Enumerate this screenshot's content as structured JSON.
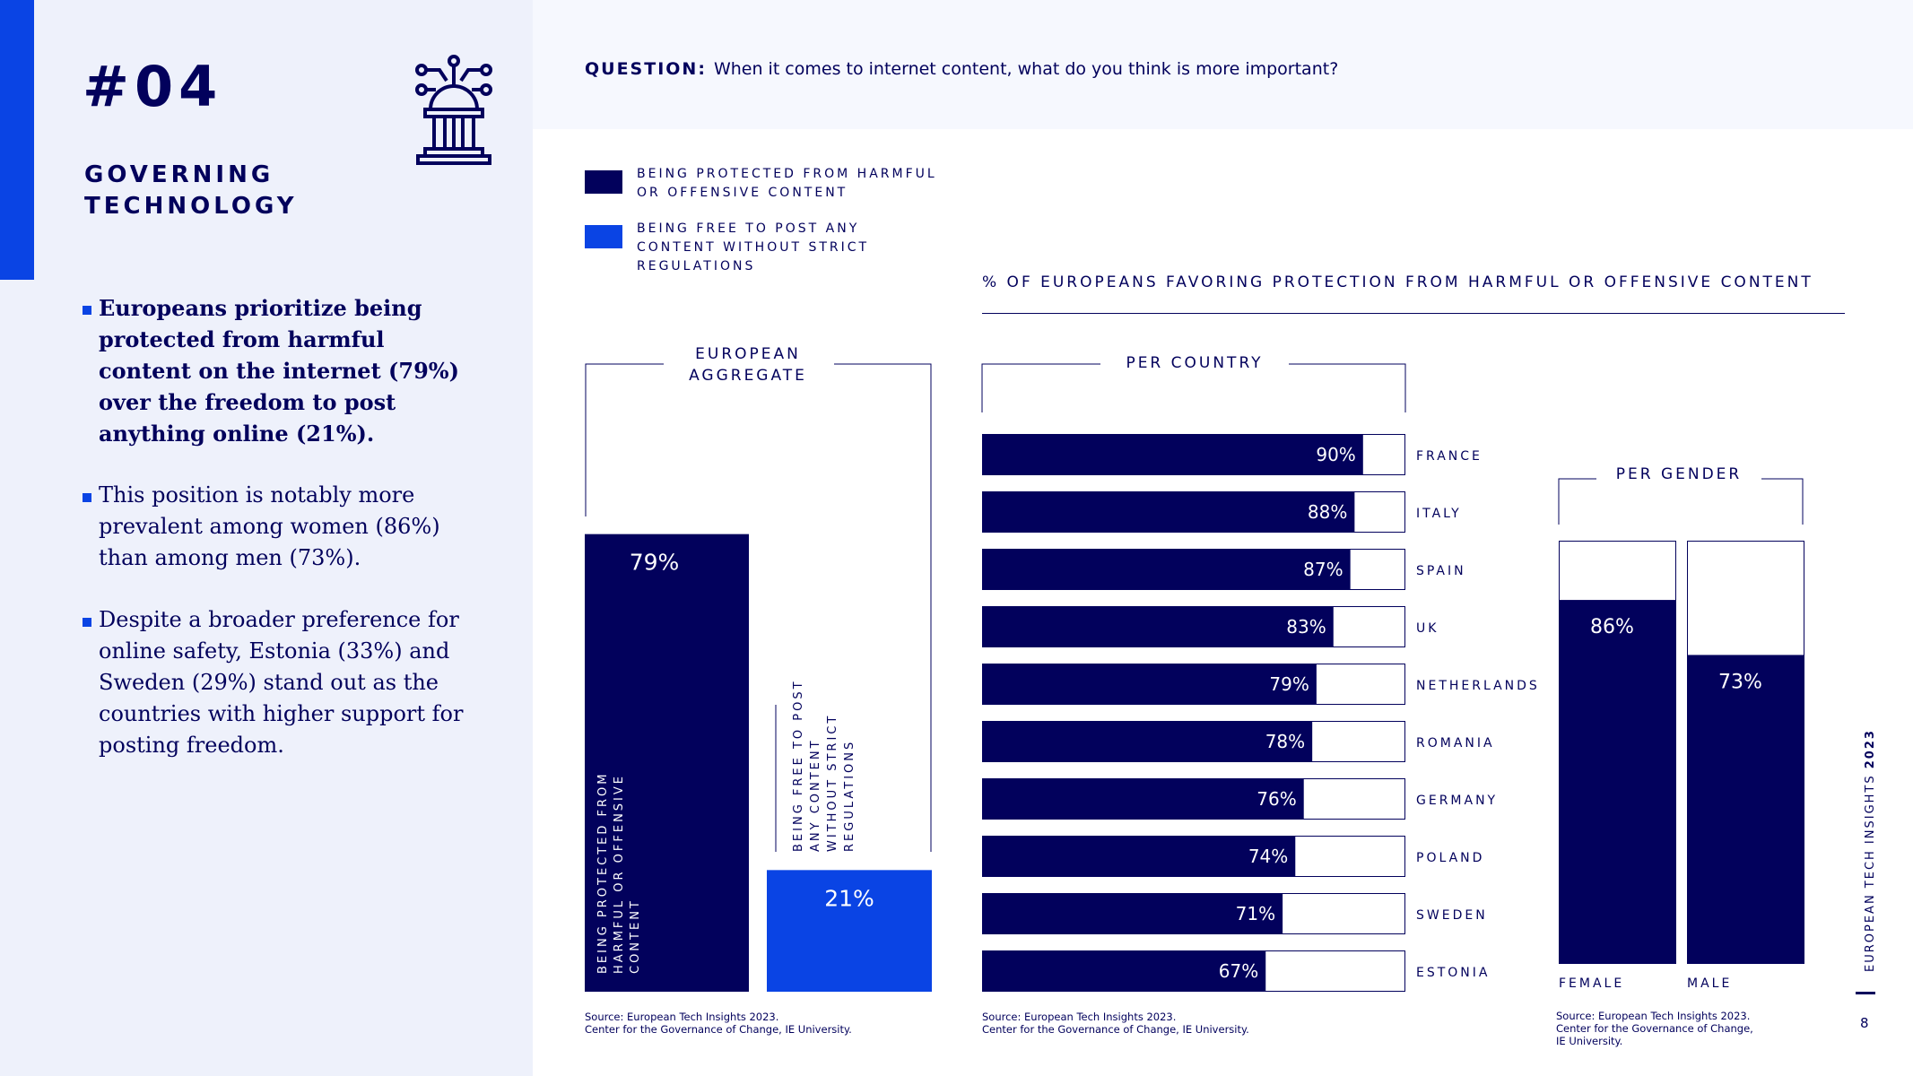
{
  "sidebar": {
    "section_number": "#04",
    "section_title": "GOVERNING TECHNOLOGY",
    "icon": "government-tech-icon",
    "bullets": [
      "Europeans prioritize being protected from harmful content on the internet (79%) over the freedom to post anything online (21%).",
      "This position is notably more prevalent among women (86%) than among men (73%).",
      "Despite a broader preference for online safety, Estonia (33%) and Sweden (29%) stand out as the countries with higher support for posting freedom."
    ]
  },
  "question": {
    "label": "QUESTION:",
    "text": "When it comes to internet content, what do you think is more important?"
  },
  "legend": [
    {
      "label": "BEING PROTECTED FROM HARMFUL OR OFFENSIVE CONTENT",
      "color": "#02015c"
    },
    {
      "label": "BEING FREE TO POST ANY CONTENT WITHOUT STRICT REGULATIONS",
      "color": "#0a44e4"
    }
  ],
  "header_label": "% OF EUROPEANS FAVORING PROTECTION FROM HARMFUL OR OFFENSIVE CONTENT",
  "colors": {
    "navy": "#02015c",
    "blue": "#0a44e4",
    "panel": "#eef1fb"
  },
  "chart_data": [
    {
      "type": "bar",
      "title": "EUROPEAN AGGREGATE",
      "categories": [
        "BEING PROTECTED FROM HARMFUL OR OFFENSIVE CONTENT",
        "BEING FREE TO POST ANY CONTENT WITHOUT STRICT REGULATIONS"
      ],
      "values": [
        79,
        21
      ],
      "value_labels": [
        "79%",
        "21%"
      ],
      "ylim": [
        0,
        100
      ],
      "source": [
        "Source: European Tech Insights 2023.",
        "Center for the Governance of Change, IE University."
      ]
    },
    {
      "type": "bar",
      "orientation": "horizontal",
      "title": "PER COUNTRY",
      "categories": [
        "FRANCE",
        "ITALY",
        "SPAIN",
        "UK",
        "NETHERLANDS",
        "ROMANIA",
        "GERMANY",
        "POLAND",
        "SWEDEN",
        "ESTONIA"
      ],
      "values": [
        90,
        88,
        87,
        83,
        79,
        78,
        76,
        74,
        71,
        67
      ],
      "value_labels": [
        "90%",
        "88%",
        "87%",
        "83%",
        "79%",
        "78%",
        "76%",
        "74%",
        "71%",
        "67%"
      ],
      "xlim": [
        0,
        100
      ],
      "source": [
        "Source: European Tech Insights 2023.",
        "Center for the Governance of Change, IE University."
      ]
    },
    {
      "type": "bar",
      "title": "PER GENDER",
      "categories": [
        "FEMALE",
        "MALE"
      ],
      "values": [
        86,
        73
      ],
      "value_labels": [
        "86%",
        "73%"
      ],
      "ylim": [
        0,
        100
      ],
      "source": [
        "Source: European Tech Insights 2023.",
        "Center for the Governance of Change,",
        "IE University."
      ]
    }
  ],
  "footer": {
    "brand": "EUROPEAN TECH INSIGHTS",
    "year": "2023",
    "page_number": "8"
  }
}
